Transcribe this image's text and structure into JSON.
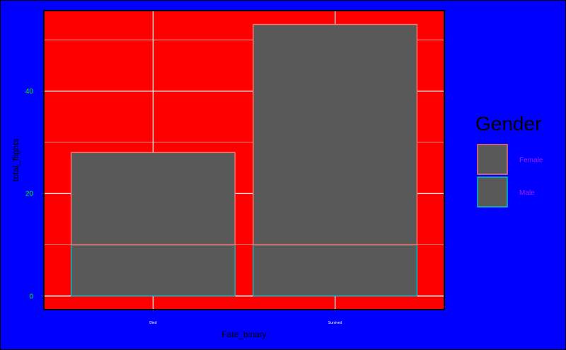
{
  "chart_data": {
    "type": "bar",
    "stacked": true,
    "title": "",
    "xlabel": "Fate_binary",
    "ylabel": "total_flights",
    "categories": [
      "Died",
      "Survived"
    ],
    "series": [
      {
        "name": "Male",
        "values": [
          10,
          10
        ]
      },
      {
        "name": "Female",
        "values": [
          18,
          43
        ]
      }
    ],
    "ylim": [
      -2.65,
      55.7
    ],
    "yticks": [
      0,
      20,
      40
    ],
    "grid": true,
    "legend": {
      "title": "Gender",
      "position": "right",
      "entries": [
        "Female",
        "Male"
      ]
    }
  },
  "colors": {
    "page_background": "#0000ff",
    "panel_background": "#ff0000",
    "bar_fill": "#595959",
    "grid": "#ffffff",
    "y_tick_labels": "#00ff00",
    "x_tick_labels": "#ffffff",
    "axis_titles": "#000000",
    "legend_labels": "#a020f0",
    "Female": "#f8766d",
    "Male": "#00bfc4"
  }
}
